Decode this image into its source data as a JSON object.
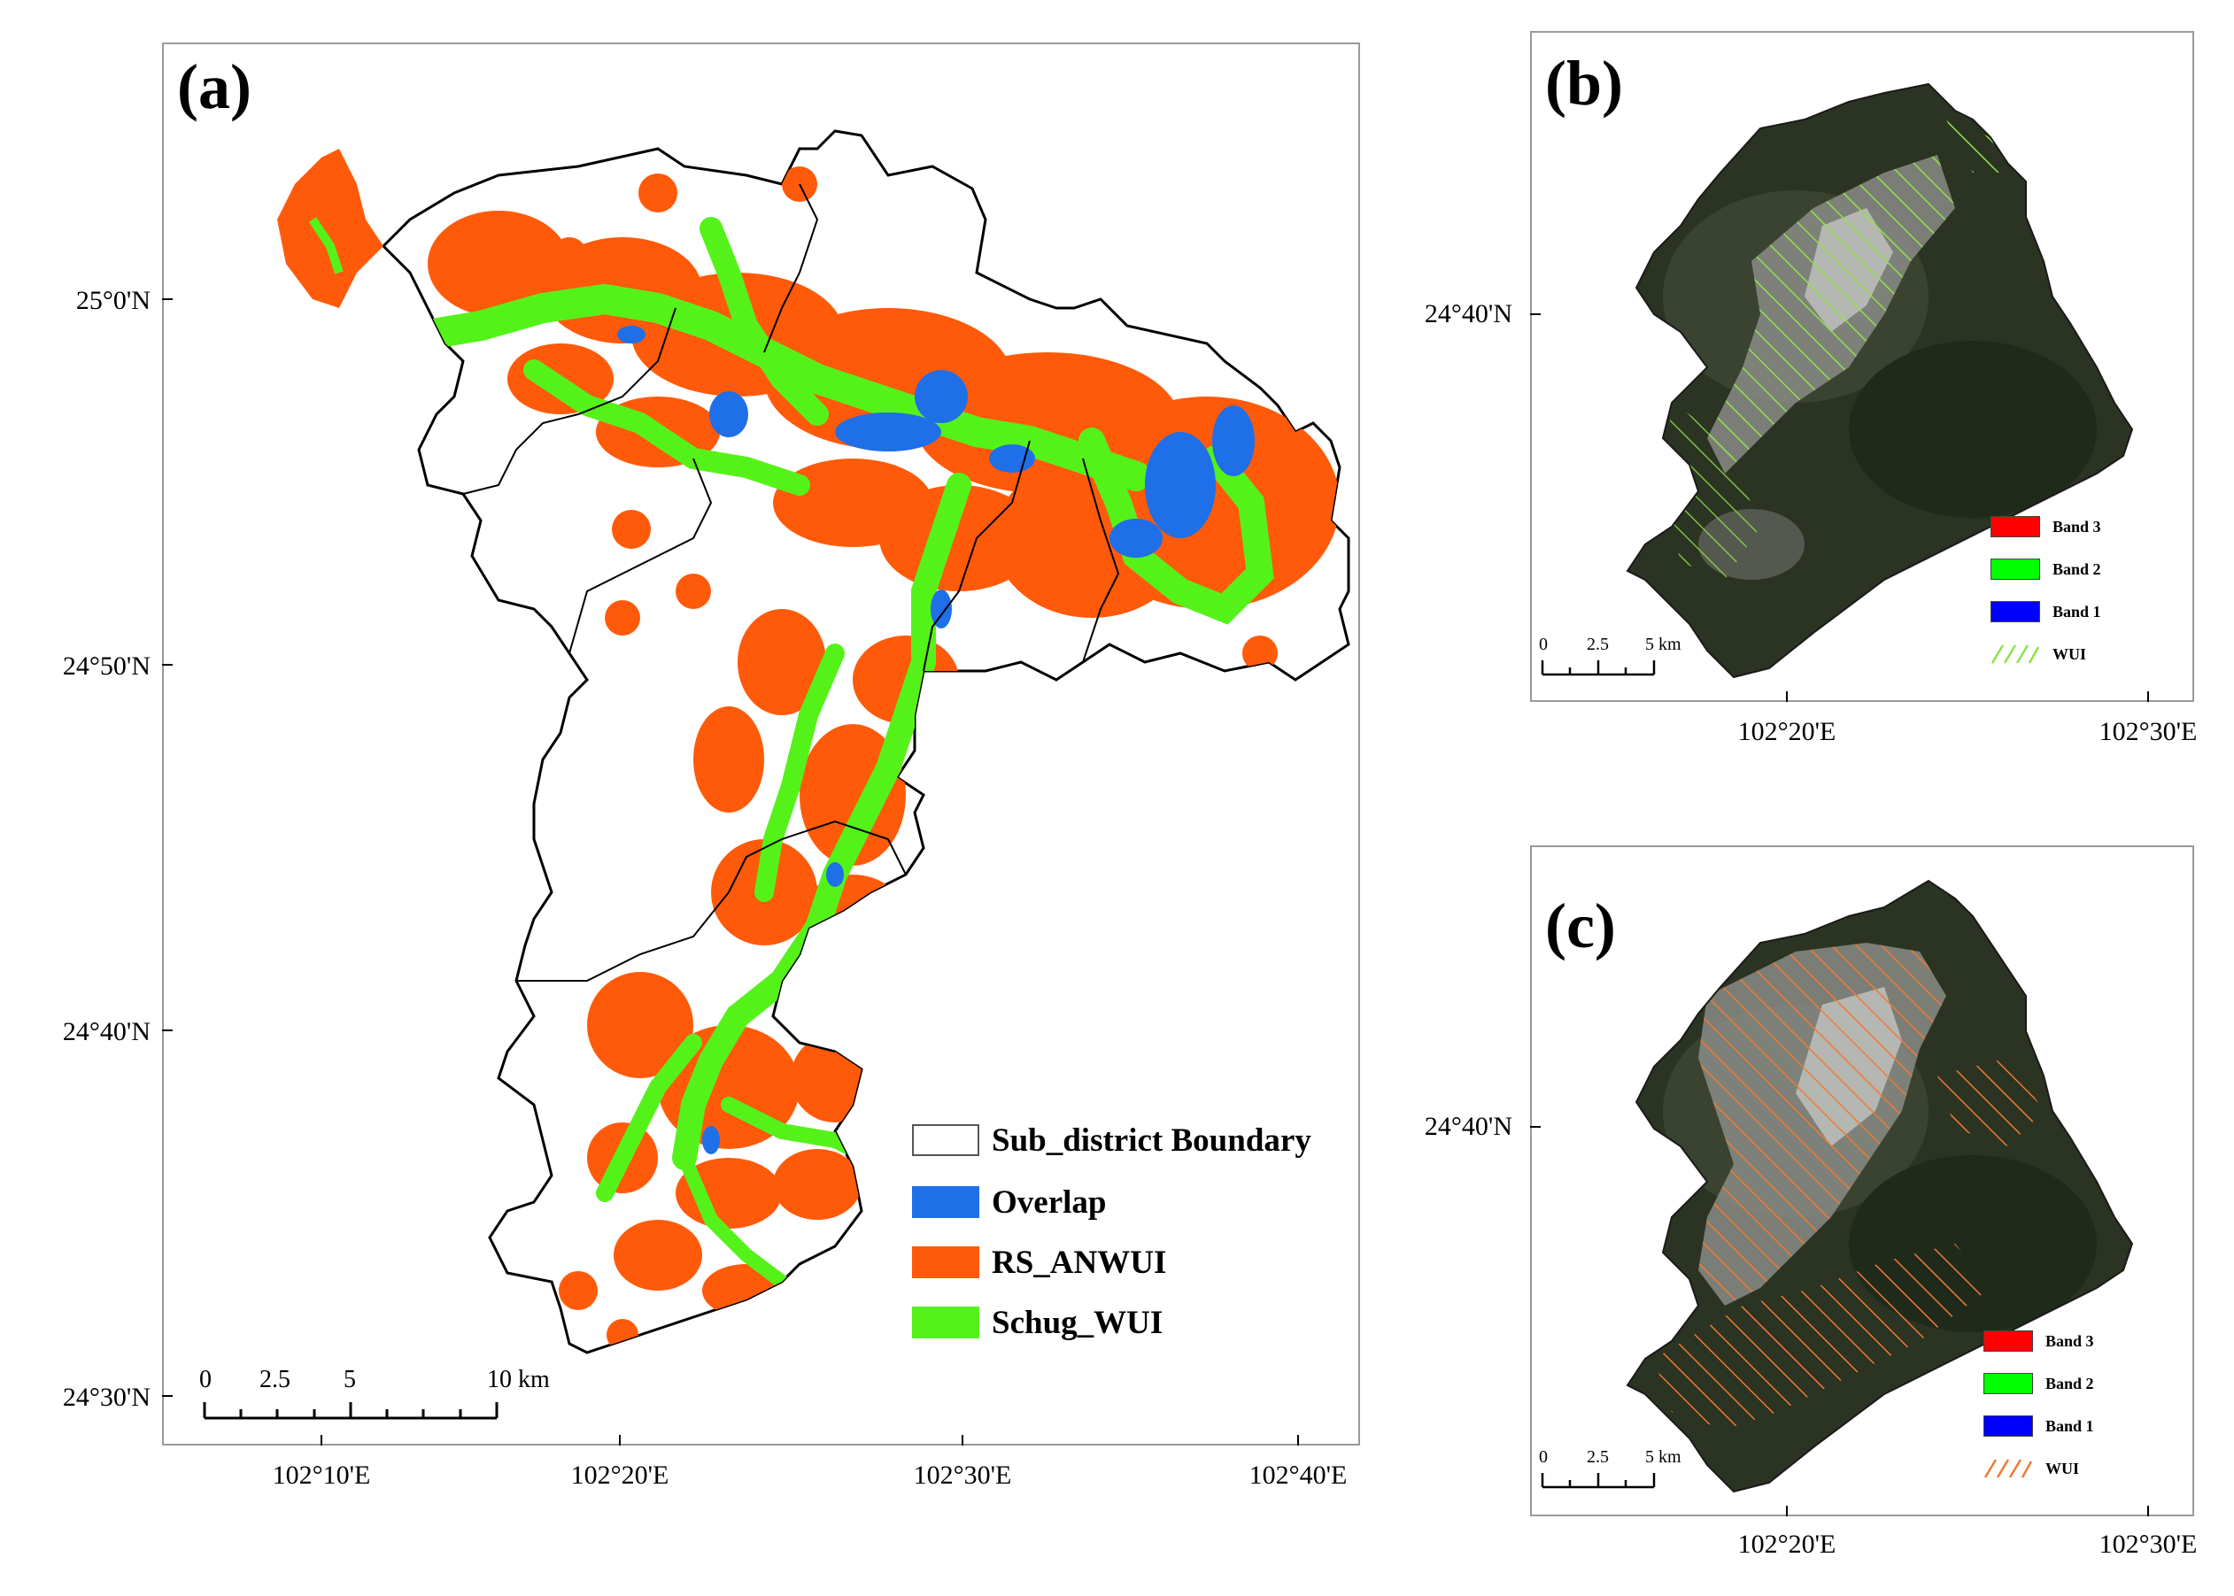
{
  "panel_a": {
    "label": "(a)",
    "lat_labels": [
      "25°0'N",
      "24°50'N",
      "24°40'N",
      "24°30'N"
    ],
    "lon_labels": [
      "102°10'E",
      "102°20'E",
      "102°30'E",
      "102°40'E"
    ],
    "scale_labels": [
      "0",
      "2.5",
      "5",
      "10 km"
    ],
    "legend": [
      {
        "label": "Sub_district Boundary",
        "color": "#ffffff"
      },
      {
        "label": "Overlap",
        "color": "#1f6fe8"
      },
      {
        "label": "RS_ANWUI",
        "color": "#ff5a0a"
      },
      {
        "label": "Schug_WUI",
        "color": "#55f21a"
      }
    ]
  },
  "panel_b": {
    "label": "(b)",
    "lat_label": "24°40'N",
    "lon_labels": [
      "102°20'E",
      "102°30'E"
    ],
    "scale_labels": [
      "0",
      "2.5",
      "5 km"
    ],
    "legend": [
      {
        "label": "Band 3",
        "color": "#ff0000"
      },
      {
        "label": "Band 2",
        "color": "#00ff00"
      },
      {
        "label": "Band 1",
        "color": "#0000ff"
      },
      {
        "label": "WUI",
        "color": "#8fe24a"
      }
    ]
  },
  "panel_c": {
    "label": "(c)",
    "lat_label": "24°40'N",
    "lon_labels": [
      "102°20'E",
      "102°30'E"
    ],
    "scale_labels": [
      "0",
      "2.5",
      "5 km"
    ],
    "legend": [
      {
        "label": "Band 3",
        "color": "#ff0000"
      },
      {
        "label": "Band 2",
        "color": "#00ff00"
      },
      {
        "label": "Band 1",
        "color": "#0000ff"
      },
      {
        "label": "WUI",
        "color": "#f07a30"
      }
    ]
  }
}
